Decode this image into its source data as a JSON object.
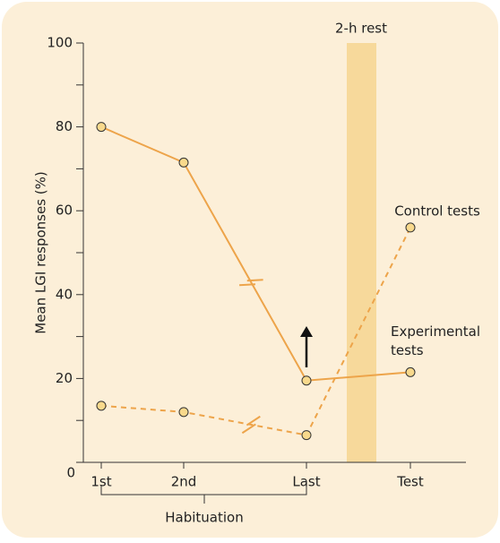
{
  "chart_data": {
    "type": "line",
    "y_label": "Mean LGI responses (%)",
    "ylim": [
      0,
      100
    ],
    "yticks": [
      0,
      20,
      40,
      60,
      80,
      100
    ],
    "yminor_ticks": [
      10,
      30,
      50,
      70,
      90
    ],
    "categories": [
      "1st",
      "2nd",
      "Last",
      "Test"
    ],
    "series": [
      {
        "name": "Experimental tests",
        "color": "#eda44a",
        "line_style": "solid",
        "values": [
          80,
          71.5,
          19.5,
          21.5
        ]
      },
      {
        "name": "Control tests",
        "color": "#eda44a",
        "line_style": "dashed",
        "values": [
          13.5,
          12,
          6.5,
          56
        ]
      }
    ],
    "rest_label": "2-h rest",
    "group_label": "Habituation"
  }
}
